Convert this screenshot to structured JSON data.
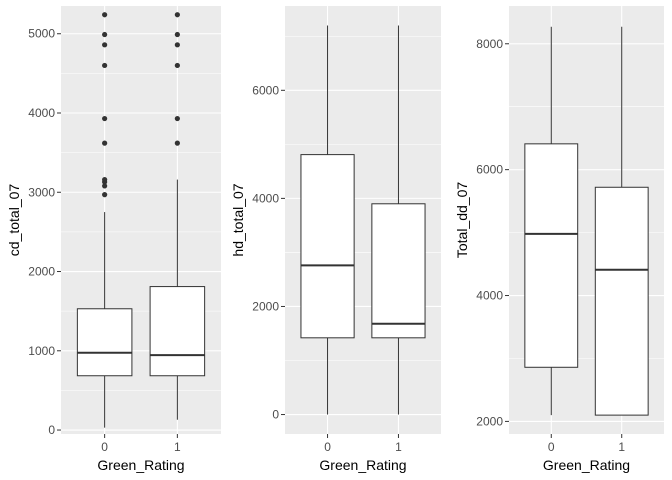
{
  "chart_data": [
    {
      "type": "boxplot",
      "xlabel": "Green_Rating",
      "ylabel": "cd_total_07",
      "categories": [
        "0",
        "1"
      ],
      "ylim": [
        -50,
        5350
      ],
      "yticks": [
        0,
        1000,
        2000,
        3000,
        4000,
        5000
      ],
      "ytick_labels": [
        "0",
        "1000",
        "2000",
        "3000",
        "4000",
        "5000"
      ],
      "boxes": [
        {
          "category": "0",
          "whisker_low": 30,
          "q1": 685,
          "median": 975,
          "q3": 1530,
          "whisker_high": 2750,
          "outliers": [
            2970,
            3080,
            3130,
            3160,
            3620,
            3930,
            4600,
            4860,
            4990,
            5240
          ]
        },
        {
          "category": "1",
          "whisker_low": 130,
          "q1": 685,
          "median": 945,
          "q3": 1810,
          "whisker_high": 3160,
          "outliers": [
            3620,
            3930,
            4600,
            4860,
            4990,
            5240
          ]
        }
      ]
    },
    {
      "type": "boxplot",
      "xlabel": "Green_Rating",
      "ylabel": "hd_total_07",
      "categories": [
        "0",
        "1"
      ],
      "ylim": [
        -360,
        7560
      ],
      "yticks": [
        0,
        2000,
        4000,
        6000
      ],
      "ytick_labels": [
        "0",
        "2000",
        "4000",
        "6000"
      ],
      "boxes": [
        {
          "category": "0",
          "whisker_low": 0,
          "q1": 1420,
          "median": 2760,
          "q3": 4810,
          "whisker_high": 7200,
          "outliers": []
        },
        {
          "category": "1",
          "whisker_low": 0,
          "q1": 1420,
          "median": 1680,
          "q3": 3900,
          "whisker_high": 7200,
          "outliers": []
        }
      ]
    },
    {
      "type": "boxplot",
      "xlabel": "Green_Rating",
      "ylabel": "Total_dd_07",
      "categories": [
        "0",
        "1"
      ],
      "ylim": [
        1800,
        8600
      ],
      "yticks": [
        2000,
        4000,
        6000,
        8000
      ],
      "ytick_labels": [
        "2000",
        "4000",
        "6000",
        "8000"
      ],
      "boxes": [
        {
          "category": "0",
          "whisker_low": 2100,
          "q1": 2860,
          "median": 4980,
          "q3": 6410,
          "whisker_high": 8270,
          "outliers": []
        },
        {
          "category": "1",
          "whisker_low": 2100,
          "q1": 2100,
          "median": 4410,
          "q3": 5720,
          "whisker_high": 8270,
          "outliers": []
        }
      ]
    }
  ]
}
